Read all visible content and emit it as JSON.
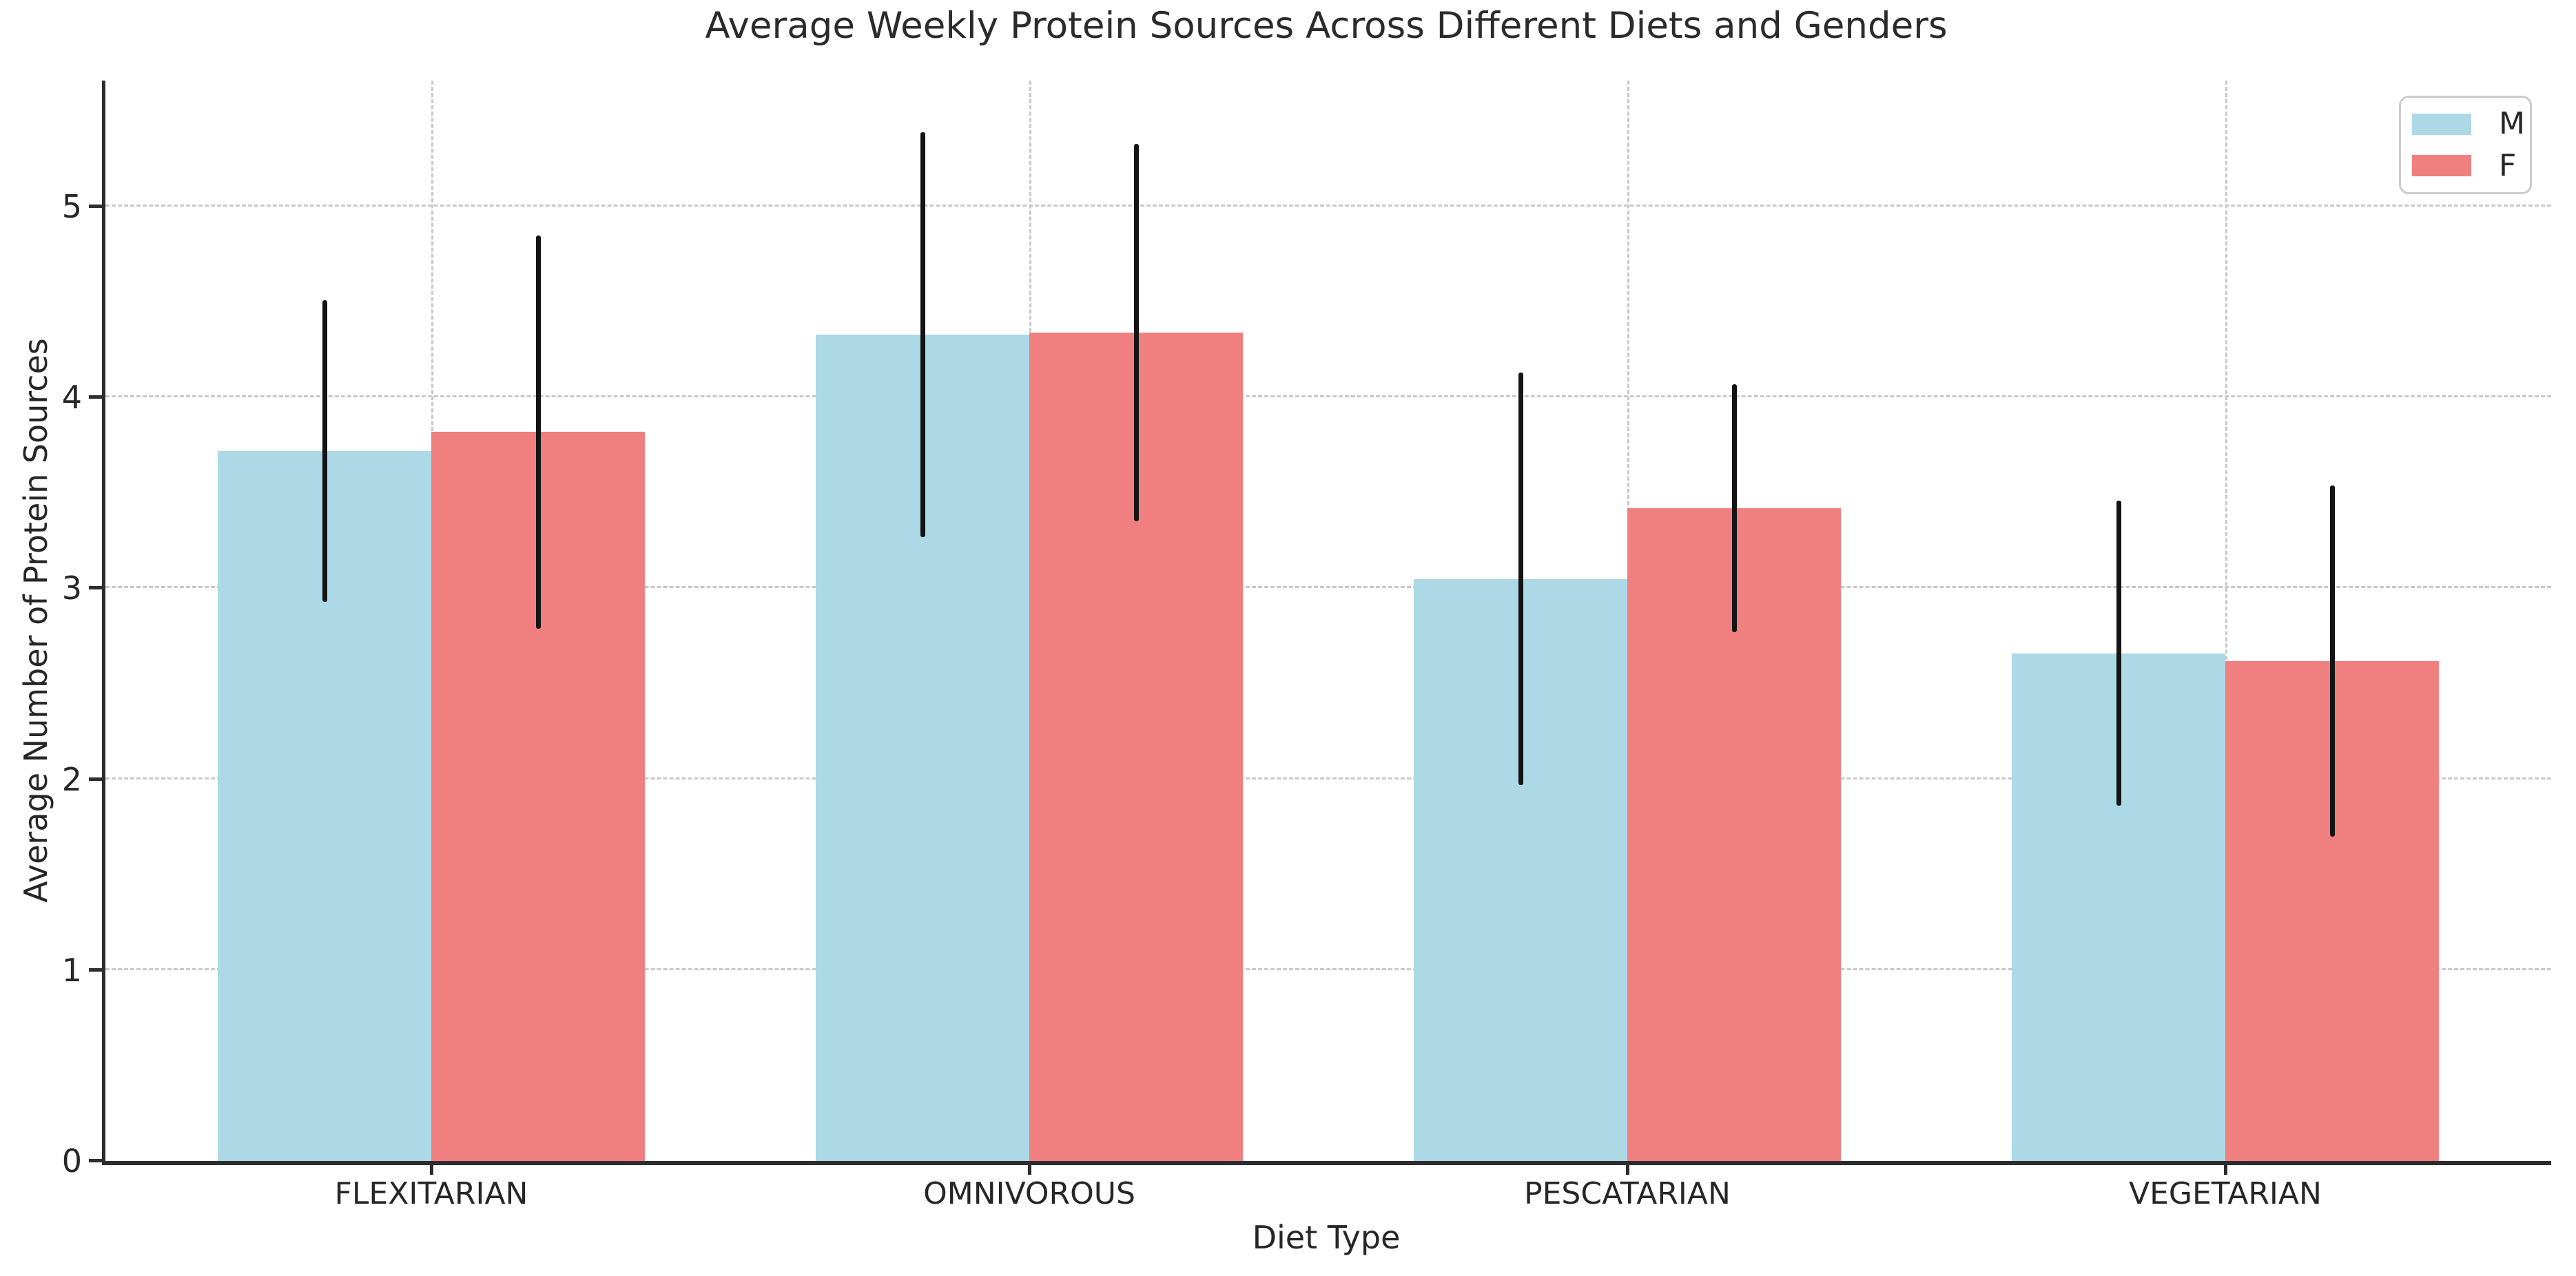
{
  "chart_data": {
    "type": "bar",
    "title": "Average Weekly Protein Sources Across Different Diets and Genders",
    "xlabel": "Diet Type",
    "ylabel": "Average Number of Protein Sources",
    "categories": [
      "FLEXITARIAN",
      "OMNIVOROUS",
      "PESCATARIAN",
      "VEGETARIAN"
    ],
    "series": [
      {
        "name": "M",
        "color": "#ADD8E6",
        "values": [
          3.72,
          4.33,
          3.05,
          2.66
        ],
        "errors": [
          0.79,
          1.06,
          1.08,
          0.8
        ]
      },
      {
        "name": "F",
        "color": "#F08080",
        "values": [
          3.82,
          4.34,
          3.42,
          2.62
        ],
        "errors": [
          1.03,
          0.99,
          0.65,
          0.92
        ]
      }
    ],
    "yticks": [
      0,
      1,
      2,
      3,
      4,
      5
    ],
    "ylim": [
      0,
      5.66
    ],
    "x_margin": 0.545,
    "bar_width": 0.357,
    "grid": "dashed",
    "legend_position": "upper right",
    "error_bar_color": "#141414",
    "grid_color": "#c8c8c8",
    "spine_color": "#2d2d2d"
  }
}
